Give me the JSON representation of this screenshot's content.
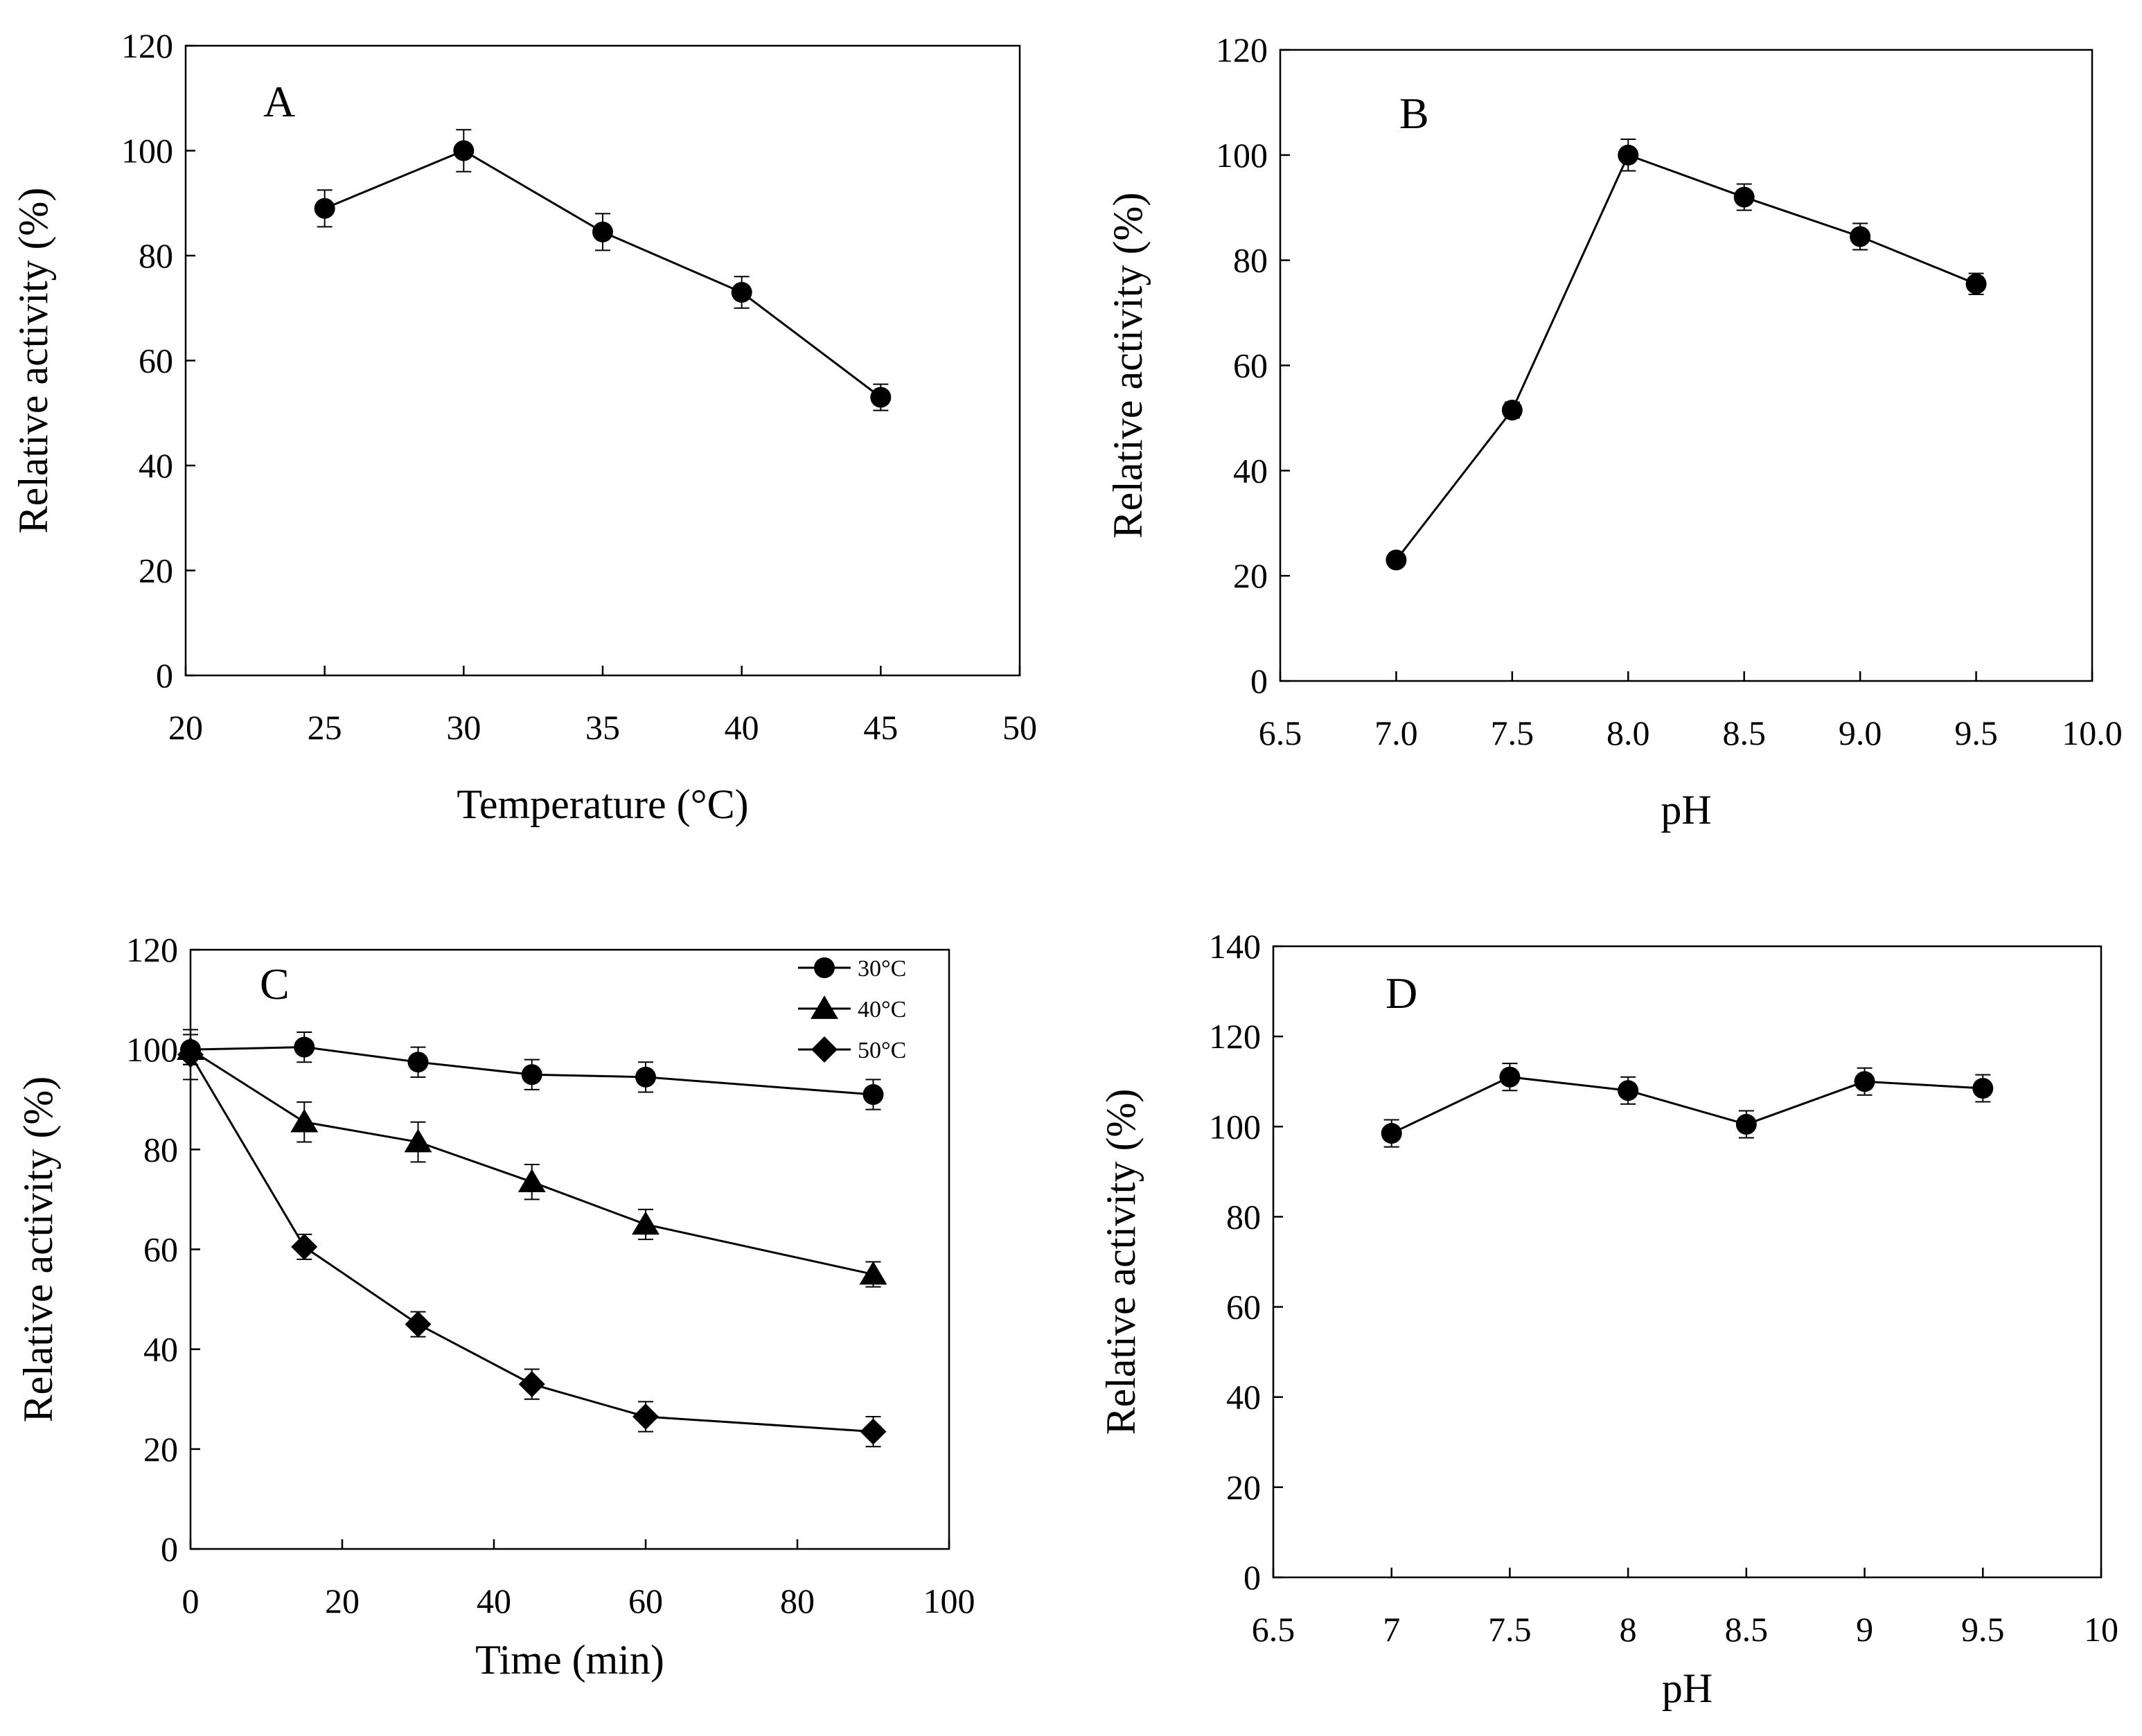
{
  "colors": {
    "ink": "#000000",
    "background": "#ffffff"
  },
  "chart_data": [
    {
      "panel": "A",
      "type": "line",
      "xlabel": "Temperature (°C)",
      "ylabel": "Relative activity (%)",
      "xlim": [
        20,
        50
      ],
      "ylim": [
        0,
        120
      ],
      "xticks": [
        20,
        25,
        30,
        35,
        40,
        45,
        50
      ],
      "xtick_labels": [
        "20",
        "25",
        "30",
        "35",
        "40",
        "45",
        "50"
      ],
      "yticks": [
        0,
        20,
        40,
        60,
        80,
        100,
        120
      ],
      "ytick_labels": [
        "0",
        "20",
        "40",
        "60",
        "80",
        "100",
        "120"
      ],
      "grid": false,
      "series": [
        {
          "name": "activity",
          "marker": "circle",
          "x": [
            25,
            30,
            35,
            40,
            45
          ],
          "y": [
            89,
            100,
            84.5,
            73,
            53
          ],
          "err": [
            3.5,
            4,
            3.5,
            3,
            2.5
          ]
        }
      ]
    },
    {
      "panel": "B",
      "type": "line",
      "xlabel": "pH",
      "ylabel": "Relative activity (%)",
      "xlim": [
        6.5,
        10.0
      ],
      "ylim": [
        0,
        120
      ],
      "xticks": [
        6.5,
        7.0,
        7.5,
        8.0,
        8.5,
        9.0,
        9.5,
        10.0
      ],
      "xtick_labels": [
        "6.5",
        "7.0",
        "7.5",
        "8.0",
        "8.5",
        "9.0",
        "9.5",
        "10.0"
      ],
      "yticks": [
        0,
        20,
        40,
        60,
        80,
        100,
        120
      ],
      "ytick_labels": [
        "0",
        "20",
        "40",
        "60",
        "80",
        "100",
        "120"
      ],
      "grid": false,
      "series": [
        {
          "name": "activity",
          "marker": "circle",
          "x": [
            7.0,
            7.5,
            8.0,
            8.5,
            9.0,
            9.5
          ],
          "y": [
            23,
            51.5,
            100,
            92,
            84.5,
            75.5
          ],
          "err": [
            1,
            1.5,
            3,
            2.5,
            2.5,
            2
          ]
        }
      ]
    },
    {
      "panel": "C",
      "type": "line",
      "xlabel": "Time (min)",
      "ylabel": "Relative activity (%)",
      "xlim": [
        0,
        100
      ],
      "ylim": [
        0,
        120
      ],
      "xticks": [
        0,
        20,
        40,
        60,
        80,
        100
      ],
      "xtick_labels": [
        "0",
        "20",
        "40",
        "60",
        "80",
        "100"
      ],
      "yticks": [
        0,
        20,
        40,
        60,
        80,
        100,
        120
      ],
      "ytick_labels": [
        "0",
        "20",
        "40",
        "60",
        "80",
        "100",
        "120"
      ],
      "grid": false,
      "legend_position": "top-right",
      "series": [
        {
          "name": "30°C",
          "marker": "circle",
          "x": [
            0,
            15,
            30,
            45,
            60,
            90
          ],
          "y": [
            100,
            100.5,
            97.5,
            95,
            94.5,
            91
          ],
          "err": [
            3,
            3,
            3,
            3,
            3,
            3
          ]
        },
        {
          "name": "40°C",
          "marker": "triangle",
          "x": [
            0,
            15,
            30,
            45,
            60,
            90
          ],
          "y": [
            100,
            85.5,
            81.5,
            73.5,
            65,
            55
          ],
          "err": [
            3,
            4,
            4,
            3.5,
            3,
            2.5
          ]
        },
        {
          "name": "50°C",
          "marker": "diamond",
          "x": [
            0,
            15,
            30,
            45,
            60,
            90
          ],
          "y": [
            99,
            60.5,
            45,
            33,
            26.5,
            23.5
          ],
          "err": [
            5,
            2.5,
            2.5,
            3,
            3,
            3
          ]
        }
      ]
    },
    {
      "panel": "D",
      "type": "line",
      "xlabel": "pH",
      "ylabel": "Relative activity (%)",
      "xlim": [
        6.5,
        10
      ],
      "ylim": [
        0,
        140
      ],
      "xticks": [
        6.5,
        7,
        7.5,
        8,
        8.5,
        9,
        9.5,
        10
      ],
      "xtick_labels": [
        "6.5",
        "7",
        "7.5",
        "8",
        "8.5",
        "9",
        "9.5",
        "10"
      ],
      "yticks": [
        0,
        20,
        40,
        60,
        80,
        100,
        120,
        140
      ],
      "ytick_labels": [
        "0",
        "20",
        "40",
        "60",
        "80",
        "100",
        "120",
        "140"
      ],
      "grid": false,
      "series": [
        {
          "name": "activity",
          "marker": "circle",
          "x": [
            7,
            7.5,
            8,
            8.5,
            9,
            9.5
          ],
          "y": [
            98.5,
            111,
            108,
            100.5,
            110,
            108.5
          ],
          "err": [
            3,
            3,
            3,
            3,
            3,
            3
          ]
        }
      ]
    }
  ]
}
